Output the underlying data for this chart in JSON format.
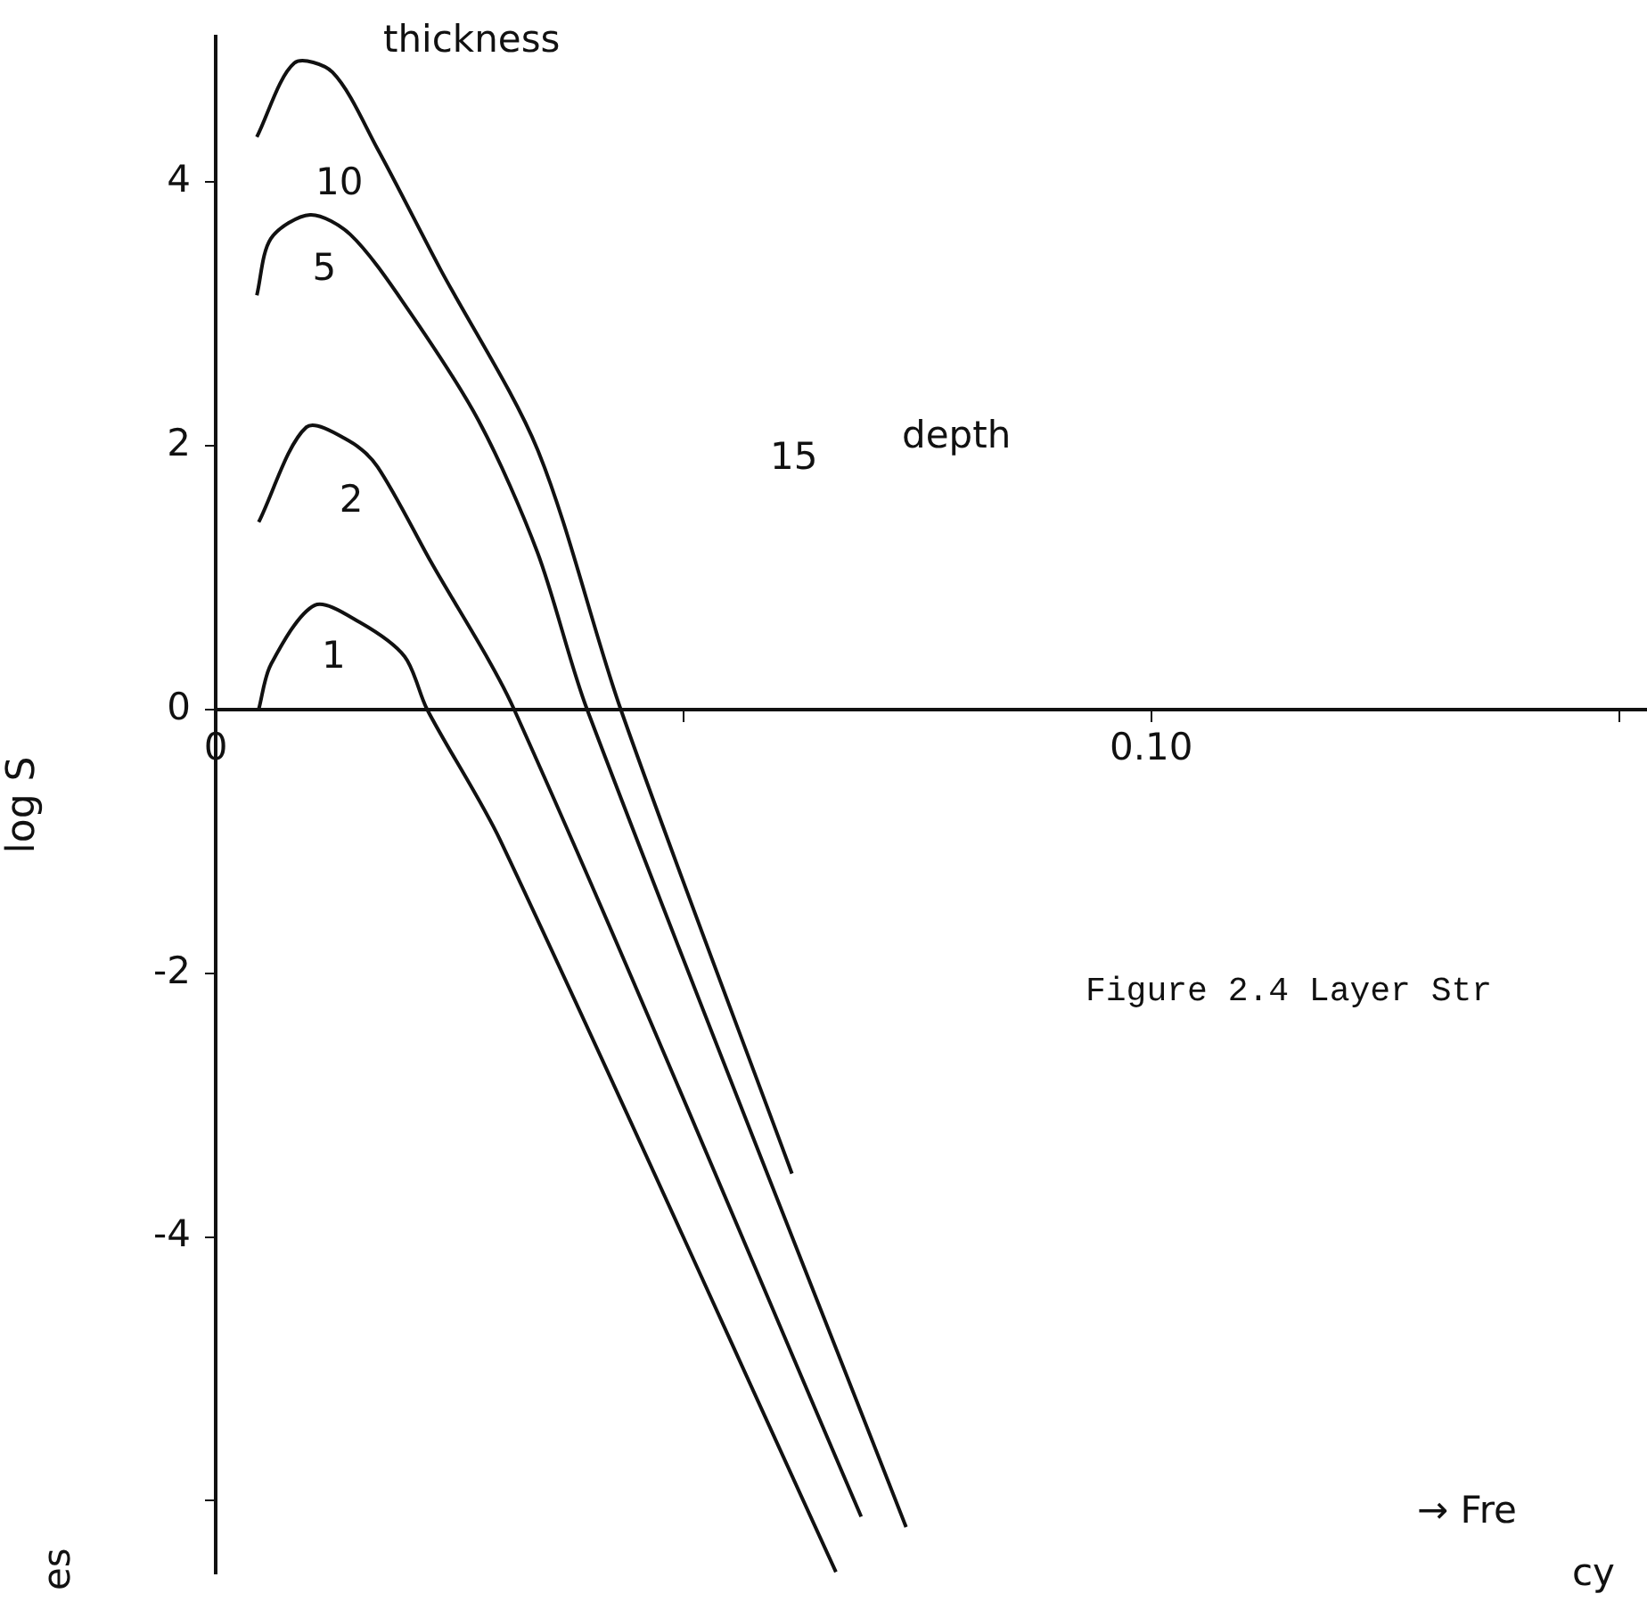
{
  "chart_data": {
    "type": "line",
    "xlabel": null,
    "ylabel": "log S",
    "xlim": [
      0,
      0.153
    ],
    "xticks": [
      0,
      {
        "value": 0.05,
        "label": null
      },
      {
        "value": 0.1,
        "label": "0.10"
      },
      {
        "value": 0.15,
        "label": null
      }
    ],
    "ylim": [
      -6.55,
      5.1
    ],
    "yticks": [
      4,
      2,
      0,
      -2,
      -4,
      {
        "value": -6,
        "label": null
      }
    ],
    "grid": false,
    "legend": false,
    "marker": "none",
    "line_style": "solid",
    "series": [
      {
        "name": "10",
        "color": "#111111",
        "x": [
          0.0044,
          0.0084,
          0.0125,
          0.0173,
          0.024,
          0.0344,
          0.0433,
          0.0616
        ],
        "values": [
          4.34,
          4.9,
          4.83,
          4.25,
          3.34,
          1.97,
          0,
          -3.52
        ]
      },
      {
        "name": "5",
        "color": "#111111",
        "x": [
          0.0044,
          0.0059,
          0.0101,
          0.0144,
          0.0202,
          0.0281,
          0.0344,
          0.0397,
          0.0738
        ],
        "values": [
          3.14,
          3.57,
          3.75,
          3.6,
          3.07,
          2.19,
          1.19,
          0,
          -6.2
        ]
      },
      {
        "name": "2",
        "color": "#111111",
        "x": [
          0.0046,
          0.0097,
          0.0144,
          0.0173,
          0.023,
          0.0319,
          0.069
        ],
        "values": [
          1.42,
          2.14,
          2.03,
          1.84,
          1.12,
          0,
          -6.12
        ]
      },
      {
        "name": "1",
        "color": "#111111",
        "x": [
          0.0046,
          0.0059,
          0.0106,
          0.0154,
          0.0202,
          0.0226,
          0.0304,
          0.0663
        ],
        "values": [
          0,
          0.34,
          0.79,
          0.66,
          0.4,
          0,
          -0.99,
          -6.54
        ]
      }
    ],
    "annotations": [
      "thickness",
      "15",
      "depth",
      "Figure 2.4 Layer Str",
      "→  Fre",
      "cy",
      "es"
    ]
  }
}
